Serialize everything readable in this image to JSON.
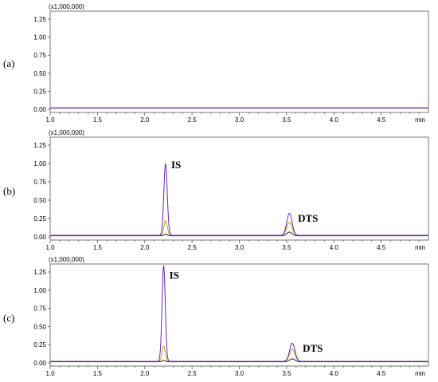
{
  "chart_data": [
    {
      "type": "line",
      "panel_label": "(a)",
      "scale_label": "(x1,000,000)",
      "x_ticks": [
        "1.0",
        "1.5",
        "2.0",
        "2.5",
        "3.0",
        "3.5",
        "4.0",
        "4.5",
        "min"
      ],
      "y_ticks": [
        "0.00",
        "0.25",
        "0.50",
        "0.75",
        "1.00",
        "1.25"
      ],
      "xlim": [
        1.0,
        5.0
      ],
      "ylim": [
        0,
        1.38
      ],
      "baseline": 0.02,
      "peaks": [],
      "annotations": []
    },
    {
      "type": "line",
      "panel_label": "(b)",
      "scale_label": "(x1,000,000)",
      "x_ticks": [
        "1.0",
        "1.5",
        "2.0",
        "2.5",
        "3.0",
        "3.5",
        "4.0",
        "4.5",
        "min"
      ],
      "y_ticks": [
        "0.00",
        "0.25",
        "0.50",
        "0.75",
        "1.00",
        "1.25"
      ],
      "xlim": [
        1.0,
        5.0
      ],
      "ylim": [
        0,
        1.38
      ],
      "baseline": 0.02,
      "peaks": [
        {
          "center": 2.22,
          "width": 0.018,
          "heights": {
            "magenta": 0.98,
            "olive": 0.2,
            "black": 0.02
          }
        },
        {
          "center": 3.53,
          "width": 0.028,
          "heights": {
            "magenta": 0.3,
            "olive": 0.18,
            "black": 0.05
          }
        }
      ],
      "annotations": [
        {
          "text": "IS",
          "x": 2.28,
          "y": 0.98
        },
        {
          "text": "DTS",
          "x": 3.62,
          "y": 0.25
        }
      ]
    },
    {
      "type": "line",
      "panel_label": "(c)",
      "scale_label": "(x1,000,000)",
      "x_ticks": [
        "1.0",
        "1.5",
        "2.0",
        "2.5",
        "3.0",
        "3.5",
        "4.0",
        "4.5",
        "min"
      ],
      "y_ticks": [
        "0.00",
        "0.25",
        "0.50",
        "0.75",
        "1.00",
        "1.25"
      ],
      "xlim": [
        1.0,
        5.0
      ],
      "ylim": [
        0,
        1.38
      ],
      "baseline": 0.02,
      "peaks": [
        {
          "center": 2.2,
          "width": 0.017,
          "heights": {
            "magenta": 1.32,
            "olive": 0.21,
            "black": 0.02
          }
        },
        {
          "center": 3.56,
          "width": 0.028,
          "heights": {
            "magenta": 0.25,
            "olive": 0.17,
            "black": 0.04
          }
        }
      ],
      "annotations": [
        {
          "text": "IS",
          "x": 2.26,
          "y": 1.2
        },
        {
          "text": "DTS",
          "x": 3.67,
          "y": 0.2
        }
      ]
    }
  ],
  "trace_colors": {
    "blue": "#2b2bd6",
    "magenta": "#cc33cc",
    "olive": "#b5a600",
    "black": "#222222"
  }
}
